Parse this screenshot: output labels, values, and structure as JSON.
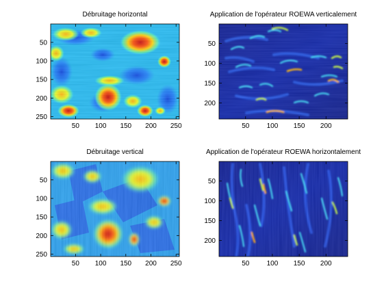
{
  "chart_data": [
    {
      "type": "heatmap",
      "title": "Débruitage horizontal",
      "colormap": "jet",
      "xlim": [
        0.5,
        256.5
      ],
      "ylim": [
        0.5,
        256.5
      ],
      "y_reversed": true,
      "xticks": [
        50,
        100,
        150,
        200,
        250
      ],
      "yticks": [
        50,
        100,
        150,
        200,
        250
      ],
      "grid": false
    },
    {
      "type": "heatmap",
      "title": "Application de l'opérateur ROEWA verticalement",
      "colormap": "jet",
      "xlim": [
        0.5,
        240.5
      ],
      "ylim": [
        0.5,
        240.5
      ],
      "y_reversed": true,
      "xticks": [
        50,
        100,
        150,
        200
      ],
      "yticks": [
        50,
        100,
        150,
        200
      ],
      "grid": false
    },
    {
      "type": "heatmap",
      "title": "Débruitage vertical",
      "colormap": "jet",
      "xlim": [
        0.5,
        256.5
      ],
      "ylim": [
        0.5,
        256.5
      ],
      "y_reversed": true,
      "xticks": [
        50,
        100,
        150,
        200,
        250
      ],
      "yticks": [
        50,
        100,
        150,
        200,
        250
      ],
      "grid": false
    },
    {
      "type": "heatmap",
      "title": "Application de l'opérateur ROEWA horizontalement",
      "colormap": "jet",
      "xlim": [
        0.5,
        240.5
      ],
      "ylim": [
        0.5,
        240.5
      ],
      "y_reversed": true,
      "xticks": [
        50,
        100,
        150,
        200
      ],
      "yticks": [
        50,
        100,
        150,
        200
      ],
      "grid": false
    }
  ]
}
